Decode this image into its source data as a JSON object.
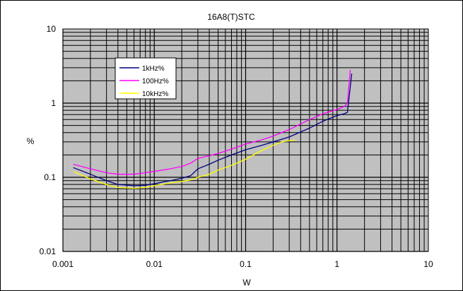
{
  "chart_data": {
    "type": "line",
    "title": "16A8(T)STC",
    "xlabel": "W",
    "ylabel": "%",
    "x_scale": "log",
    "y_scale": "log",
    "xlim": [
      0.001,
      10
    ],
    "ylim": [
      0.01,
      10
    ],
    "x_ticks": [
      "0.001",
      "0.01",
      "0.1",
      "1",
      "10"
    ],
    "y_ticks": [
      "10",
      "1",
      "0.1",
      "0.01"
    ],
    "grid": true,
    "legend_position": "top-left",
    "series": [
      {
        "name": "1kHz%",
        "color": "#000080",
        "x": [
          0.0013,
          0.002,
          0.003,
          0.004,
          0.006,
          0.008,
          0.01,
          0.015,
          0.02,
          0.025,
          0.03,
          0.04,
          0.05,
          0.07,
          0.1,
          0.15,
          0.2,
          0.3,
          0.5,
          0.7,
          1.0,
          1.2,
          1.3,
          1.45
        ],
        "y": [
          0.135,
          0.11,
          0.09,
          0.08,
          0.077,
          0.078,
          0.082,
          0.09,
          0.097,
          0.105,
          0.13,
          0.15,
          0.17,
          0.2,
          0.235,
          0.27,
          0.3,
          0.35,
          0.46,
          0.57,
          0.68,
          0.72,
          0.75,
          2.5
        ]
      },
      {
        "name": "100Hz%",
        "color": "#ff00ff",
        "x": [
          0.0013,
          0.002,
          0.003,
          0.004,
          0.006,
          0.008,
          0.01,
          0.015,
          0.02,
          0.025,
          0.03,
          0.04,
          0.05,
          0.07,
          0.1,
          0.15,
          0.2,
          0.3,
          0.5,
          0.7,
          1.0,
          1.2,
          1.3,
          1.4
        ],
        "y": [
          0.15,
          0.13,
          0.115,
          0.11,
          0.11,
          0.115,
          0.12,
          0.13,
          0.14,
          0.155,
          0.18,
          0.195,
          0.21,
          0.24,
          0.28,
          0.32,
          0.36,
          0.44,
          0.6,
          0.72,
          0.82,
          0.9,
          1.0,
          2.8
        ]
      },
      {
        "name": "10kHz%",
        "color": "#ffff00",
        "x": [
          0.0013,
          0.002,
          0.003,
          0.004,
          0.006,
          0.008,
          0.01,
          0.015,
          0.02,
          0.025,
          0.03,
          0.04,
          0.05,
          0.07,
          0.1,
          0.15,
          0.2,
          0.25,
          0.35
        ],
        "y": [
          0.12,
          0.095,
          0.08,
          0.073,
          0.071,
          0.073,
          0.077,
          0.084,
          0.088,
          0.092,
          0.1,
          0.11,
          0.125,
          0.145,
          0.175,
          0.23,
          0.27,
          0.3,
          0.32
        ]
      }
    ]
  }
}
